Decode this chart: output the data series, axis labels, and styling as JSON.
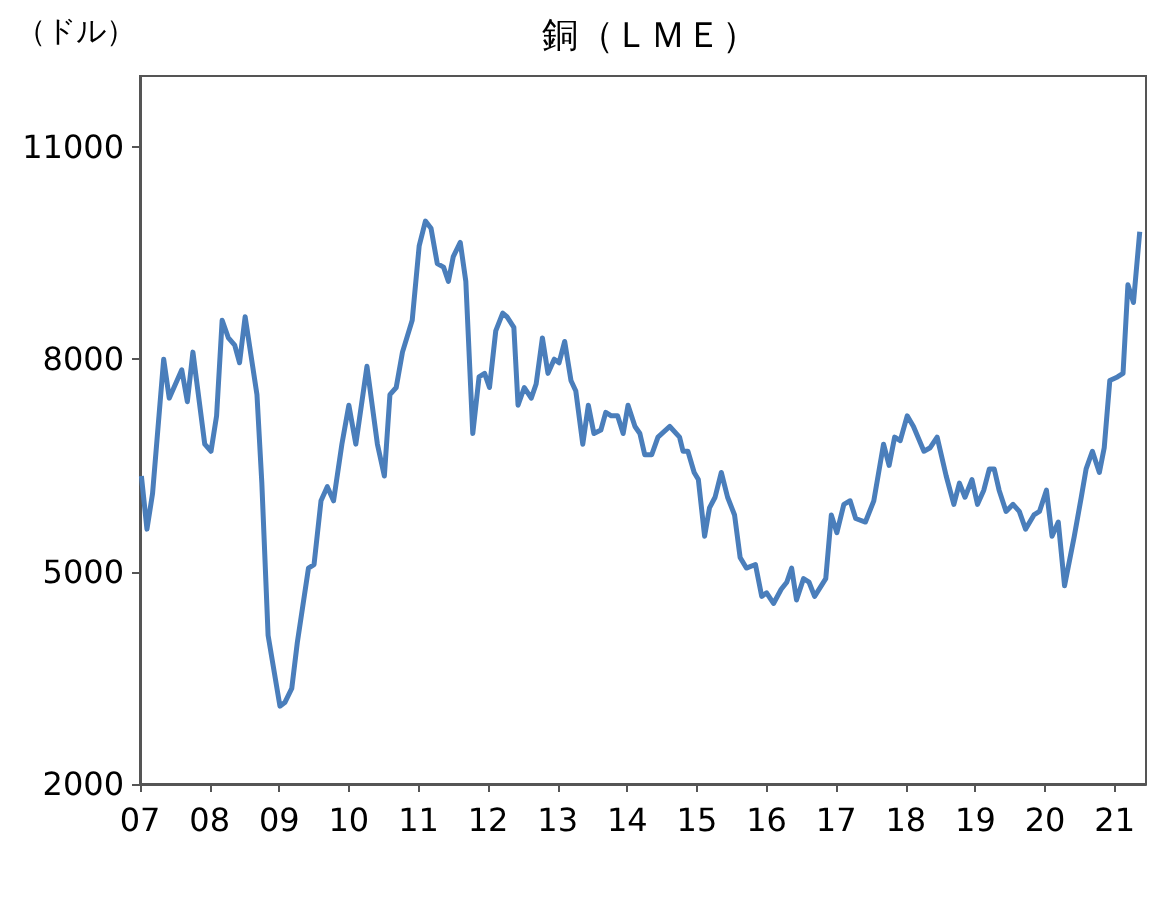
{
  "chart_data": {
    "type": "line",
    "title": "銅（ＬＭＥ）",
    "ylabel": "（ドル）",
    "xlim": [
      2007,
      2021.45
    ],
    "ylim": [
      2000,
      12000
    ],
    "yticks": [
      2000,
      5000,
      8000,
      11000
    ],
    "xticks": [
      {
        "value": 2007,
        "label": "07"
      },
      {
        "value": 2008,
        "label": "08"
      },
      {
        "value": 2009,
        "label": "09"
      },
      {
        "value": 2010,
        "label": "10"
      },
      {
        "value": 2011,
        "label": "11"
      },
      {
        "value": 2012,
        "label": "12"
      },
      {
        "value": 2013,
        "label": "13"
      },
      {
        "value": 2014,
        "label": "14"
      },
      {
        "value": 2015,
        "label": "15"
      },
      {
        "value": 2016,
        "label": "16"
      },
      {
        "value": 2017,
        "label": "17"
      },
      {
        "value": 2018,
        "label": "18"
      },
      {
        "value": 2019,
        "label": "19"
      },
      {
        "value": 2020,
        "label": "20"
      },
      {
        "value": 2021,
        "label": "21"
      }
    ],
    "grid": false,
    "marker": "none",
    "line_style": "solid",
    "x": [
      2007.02,
      2007.1,
      2007.18,
      2007.34,
      2007.42,
      2007.6,
      2007.68,
      2007.76,
      2007.93,
      2008.02,
      2008.1,
      2008.18,
      2008.27,
      2008.36,
      2008.43,
      2008.51,
      2008.68,
      2008.75,
      2008.84,
      2009.01,
      2009.08,
      2009.18,
      2009.26,
      2009.42,
      2009.5,
      2009.6,
      2009.69,
      2009.78,
      2009.9,
      2010.0,
      2010.1,
      2010.26,
      2010.41,
      2010.51,
      2010.59,
      2010.68,
      2010.77,
      2010.91,
      2011.01,
      2011.1,
      2011.18,
      2011.27,
      2011.36,
      2011.43,
      2011.5,
      2011.6,
      2011.68,
      2011.78,
      2011.87,
      2011.95,
      2012.02,
      2012.11,
      2012.21,
      2012.27,
      2012.37,
      2012.43,
      2012.52,
      2012.62,
      2012.69,
      2012.78,
      2012.86,
      2012.95,
      2013.02,
      2013.1,
      2013.19,
      2013.26,
      2013.36,
      2013.44,
      2013.52,
      2013.62,
      2013.69,
      2013.77,
      2013.86,
      2013.94,
      2014.01,
      2014.11,
      2014.18,
      2014.25,
      2014.35,
      2014.44,
      2014.61,
      2014.75,
      2014.8,
      2014.87,
      2014.96,
      2015.02,
      2015.11,
      2015.18,
      2015.26,
      2015.35,
      2015.44,
      2015.54,
      2015.62,
      2015.71,
      2015.84,
      2015.93,
      2016.0,
      2016.1,
      2016.21,
      2016.29,
      2016.36,
      2016.43,
      2016.53,
      2016.61,
      2016.69,
      2016.85,
      2016.93,
      2017.01,
      2017.11,
      2017.2,
      2017.28,
      2017.42,
      2017.54,
      2017.68,
      2017.76,
      2017.84,
      2017.92,
      2018.02,
      2018.11,
      2018.26,
      2018.35,
      2018.45,
      2018.58,
      2018.69,
      2018.77,
      2018.85,
      2018.95,
      2019.03,
      2019.12,
      2019.2,
      2019.27,
      2019.34,
      2019.44,
      2019.54,
      2019.63,
      2019.72,
      2019.84,
      2019.92,
      2020.02,
      2020.1,
      2020.19,
      2020.28,
      2020.42,
      2020.52,
      2020.59,
      2020.68,
      2020.78,
      2020.85,
      2020.93,
      2021.04,
      2021.12,
      2021.19,
      2021.27,
      2021.36
    ],
    "series": [
      {
        "color": "#4a7ebb",
        "values": [
          6350,
          5600,
          6100,
          8000,
          7450,
          7850,
          7400,
          8100,
          6800,
          6700,
          7200,
          8550,
          8300,
          8200,
          7950,
          8600,
          7500,
          6250,
          4100,
          3100,
          3150,
          3350,
          4000,
          5050,
          5100,
          6000,
          6200,
          6000,
          6800,
          7350,
          6800,
          7900,
          6800,
          6350,
          7500,
          7600,
          8100,
          8550,
          9600,
          9950,
          9850,
          9350,
          9300,
          9100,
          9450,
          9650,
          9100,
          6950,
          7750,
          7800,
          7600,
          8400,
          8650,
          8600,
          8450,
          7350,
          7600,
          7450,
          7650,
          8300,
          7800,
          8000,
          7950,
          8250,
          7700,
          7550,
          6800,
          7350,
          6950,
          7000,
          7250,
          7200,
          7200,
          6950,
          7350,
          7050,
          6950,
          6650,
          6650,
          6900,
          7050,
          6900,
          6700,
          6700,
          6400,
          6300,
          5500,
          5900,
          6050,
          6400,
          6050,
          5800,
          5200,
          5050,
          5100,
          4650,
          4700,
          4550,
          4750,
          4850,
          5050,
          4600,
          4900,
          4850,
          4650,
          4900,
          5800,
          5550,
          5950,
          6000,
          5750,
          5700,
          6000,
          6800,
          6500,
          6900,
          6850,
          7200,
          7050,
          6700,
          6750,
          6900,
          6350,
          5950,
          6250,
          6050,
          6300,
          5950,
          6150,
          6450,
          6450,
          6150,
          5850,
          5950,
          5850,
          5600,
          5800,
          5850,
          6150,
          5500,
          5700,
          4800,
          5500,
          6050,
          6450,
          6700,
          6400,
          6750,
          7700,
          7750,
          7800,
          9050,
          8800,
          9800
        ]
      }
    ]
  }
}
